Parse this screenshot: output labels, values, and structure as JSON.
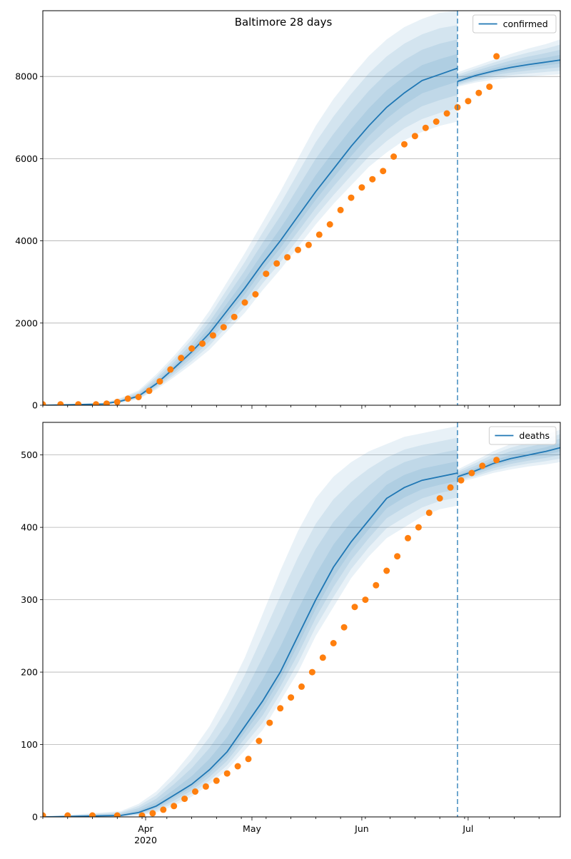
{
  "figure": {
    "title": "Baltimore 28 days"
  },
  "colors": {
    "model": "#1f77b4",
    "band": "#1f77b4",
    "observed": "#ff7f0e",
    "grid": "#b0b0b0",
    "forecast_line": "#1f77b4"
  },
  "x_axis": {
    "ticks": [
      {
        "date": "2020-04-01",
        "label": "Apr",
        "sublabel": "2020"
      },
      {
        "date": "2020-05-01",
        "label": "May",
        "sublabel": ""
      },
      {
        "date": "2020-06-01",
        "label": "Jun",
        "sublabel": ""
      },
      {
        "date": "2020-07-01",
        "label": "Jul",
        "sublabel": ""
      }
    ]
  },
  "chart_data": [
    {
      "type": "line",
      "title": "Baltimore 28 days",
      "legend": "top-right",
      "grid": "horizontal",
      "xlim": [
        "2020-03-03",
        "2020-07-27"
      ],
      "ylim": [
        0,
        9600
      ],
      "yticks": [
        0,
        2000,
        4000,
        6000,
        8000
      ],
      "forecast_start": "2020-06-28",
      "series": [
        {
          "name": "confirmed",
          "kind": "model",
          "x": [
            "2020-03-03",
            "2020-03-20",
            "2020-03-25",
            "2020-03-30",
            "2020-04-04",
            "2020-04-09",
            "2020-04-14",
            "2020-04-19",
            "2020-04-24",
            "2020-04-29",
            "2020-05-04",
            "2020-05-09",
            "2020-05-14",
            "2020-05-19",
            "2020-05-24",
            "2020-05-29",
            "2020-06-03",
            "2020-06-08",
            "2020-06-13",
            "2020-06-18",
            "2020-06-23",
            "2020-06-28"
          ],
          "values": [
            0,
            30,
            100,
            220,
            520,
            900,
            1300,
            1750,
            2300,
            2850,
            3450,
            4000,
            4600,
            5200,
            5750,
            6300,
            6800,
            7250,
            7600,
            7900,
            8050,
            8200
          ],
          "lower": [
            0,
            10,
            55,
            150,
            380,
            680,
            1000,
            1350,
            1800,
            2250,
            2800,
            3300,
            3850,
            4400,
            4900,
            5350,
            5800,
            6150,
            6450,
            6650,
            6800,
            6900
          ],
          "upper": [
            0,
            60,
            180,
            360,
            750,
            1200,
            1700,
            2300,
            3000,
            3700,
            4450,
            5200,
            6000,
            6800,
            7450,
            8000,
            8500,
            8900,
            9200,
            9400,
            9550,
            9600
          ]
        },
        {
          "name": "",
          "kind": "model-forecast",
          "x": [
            "2020-06-28",
            "2020-07-03",
            "2020-07-08",
            "2020-07-13",
            "2020-07-18",
            "2020-07-23",
            "2020-07-27"
          ],
          "values": [
            7880,
            8020,
            8130,
            8220,
            8290,
            8350,
            8400
          ],
          "lower": [
            7750,
            7850,
            7920,
            7970,
            8000,
            8030,
            8050
          ],
          "upper": [
            8100,
            8250,
            8400,
            8550,
            8680,
            8790,
            8900
          ]
        },
        {
          "name": "",
          "kind": "observed",
          "x": [
            "2020-03-03",
            "2020-03-08",
            "2020-03-13",
            "2020-03-18",
            "2020-03-21",
            "2020-03-24",
            "2020-03-27",
            "2020-03-30",
            "2020-04-02",
            "2020-04-05",
            "2020-04-08",
            "2020-04-11",
            "2020-04-14",
            "2020-04-17",
            "2020-04-20",
            "2020-04-23",
            "2020-04-26",
            "2020-04-29",
            "2020-05-02",
            "2020-05-05",
            "2020-05-08",
            "2020-05-11",
            "2020-05-14",
            "2020-05-17",
            "2020-05-20",
            "2020-05-23",
            "2020-05-26",
            "2020-05-29",
            "2020-06-01",
            "2020-06-04",
            "2020-06-07",
            "2020-06-10",
            "2020-06-13",
            "2020-06-16",
            "2020-06-19",
            "2020-06-22",
            "2020-06-25",
            "2020-06-28",
            "2020-07-01",
            "2020-07-04",
            "2020-07-07",
            "2020-07-09"
          ],
          "values": [
            20,
            20,
            20,
            20,
            40,
            80,
            160,
            200,
            350,
            580,
            870,
            1150,
            1380,
            1500,
            1700,
            1900,
            2150,
            2500,
            2700,
            3200,
            3450,
            3600,
            3780,
            3900,
            4150,
            4400,
            4750,
            5050,
            5300,
            5500,
            5700,
            6050,
            6350,
            6550,
            6750,
            6900,
            7100,
            7250,
            7400,
            7600,
            7750,
            8490
          ]
        }
      ]
    },
    {
      "type": "line",
      "title": "",
      "legend": "top-right",
      "grid": "horizontal",
      "xlim": [
        "2020-03-03",
        "2020-07-27"
      ],
      "ylim": [
        0,
        545
      ],
      "yticks": [
        0,
        100,
        200,
        300,
        400,
        500
      ],
      "forecast_start": "2020-06-28",
      "series": [
        {
          "name": "deaths",
          "kind": "model",
          "x": [
            "2020-03-03",
            "2020-03-25",
            "2020-03-30",
            "2020-04-04",
            "2020-04-09",
            "2020-04-14",
            "2020-04-19",
            "2020-04-24",
            "2020-04-29",
            "2020-05-04",
            "2020-05-09",
            "2020-05-14",
            "2020-05-19",
            "2020-05-24",
            "2020-05-29",
            "2020-06-03",
            "2020-06-08",
            "2020-06-13",
            "2020-06-18",
            "2020-06-23",
            "2020-06-28"
          ],
          "values": [
            0,
            2,
            6,
            15,
            30,
            45,
            65,
            90,
            125,
            160,
            200,
            250,
            300,
            345,
            380,
            410,
            440,
            455,
            465,
            470,
            475
          ],
          "lower": [
            0,
            0,
            2,
            6,
            15,
            28,
            45,
            65,
            92,
            120,
            160,
            200,
            250,
            290,
            330,
            360,
            385,
            400,
            415,
            425,
            430
          ],
          "upper": [
            0,
            8,
            18,
            35,
            60,
            90,
            125,
            170,
            220,
            280,
            340,
            395,
            440,
            470,
            490,
            505,
            515,
            525,
            530,
            535,
            540
          ]
        },
        {
          "name": "",
          "kind": "model-forecast",
          "x": [
            "2020-06-28",
            "2020-07-03",
            "2020-07-08",
            "2020-07-13",
            "2020-07-18",
            "2020-07-23",
            "2020-07-27"
          ],
          "values": [
            470,
            478,
            488,
            495,
            500,
            505,
            510
          ],
          "lower": [
            462,
            468,
            475,
            480,
            484,
            487,
            490
          ],
          "upper": [
            480,
            492,
            505,
            515,
            522,
            528,
            535
          ]
        },
        {
          "name": "",
          "kind": "observed",
          "x": [
            "2020-03-03",
            "2020-03-10",
            "2020-03-17",
            "2020-03-24",
            "2020-03-31",
            "2020-04-03",
            "2020-04-06",
            "2020-04-09",
            "2020-04-12",
            "2020-04-15",
            "2020-04-18",
            "2020-04-21",
            "2020-04-24",
            "2020-04-27",
            "2020-04-30",
            "2020-05-03",
            "2020-05-06",
            "2020-05-09",
            "2020-05-12",
            "2020-05-15",
            "2020-05-18",
            "2020-05-21",
            "2020-05-24",
            "2020-05-27",
            "2020-05-30",
            "2020-06-02",
            "2020-06-05",
            "2020-06-08",
            "2020-06-11",
            "2020-06-14",
            "2020-06-17",
            "2020-06-20",
            "2020-06-23",
            "2020-06-26",
            "2020-06-29",
            "2020-07-02",
            "2020-07-05",
            "2020-07-09"
          ],
          "values": [
            2,
            2,
            2,
            2,
            2,
            5,
            10,
            15,
            25,
            35,
            42,
            50,
            60,
            70,
            80,
            105,
            130,
            150,
            165,
            180,
            200,
            220,
            240,
            262,
            290,
            300,
            320,
            340,
            360,
            385,
            400,
            420,
            440,
            455,
            465,
            475,
            485,
            493
          ]
        }
      ]
    }
  ]
}
